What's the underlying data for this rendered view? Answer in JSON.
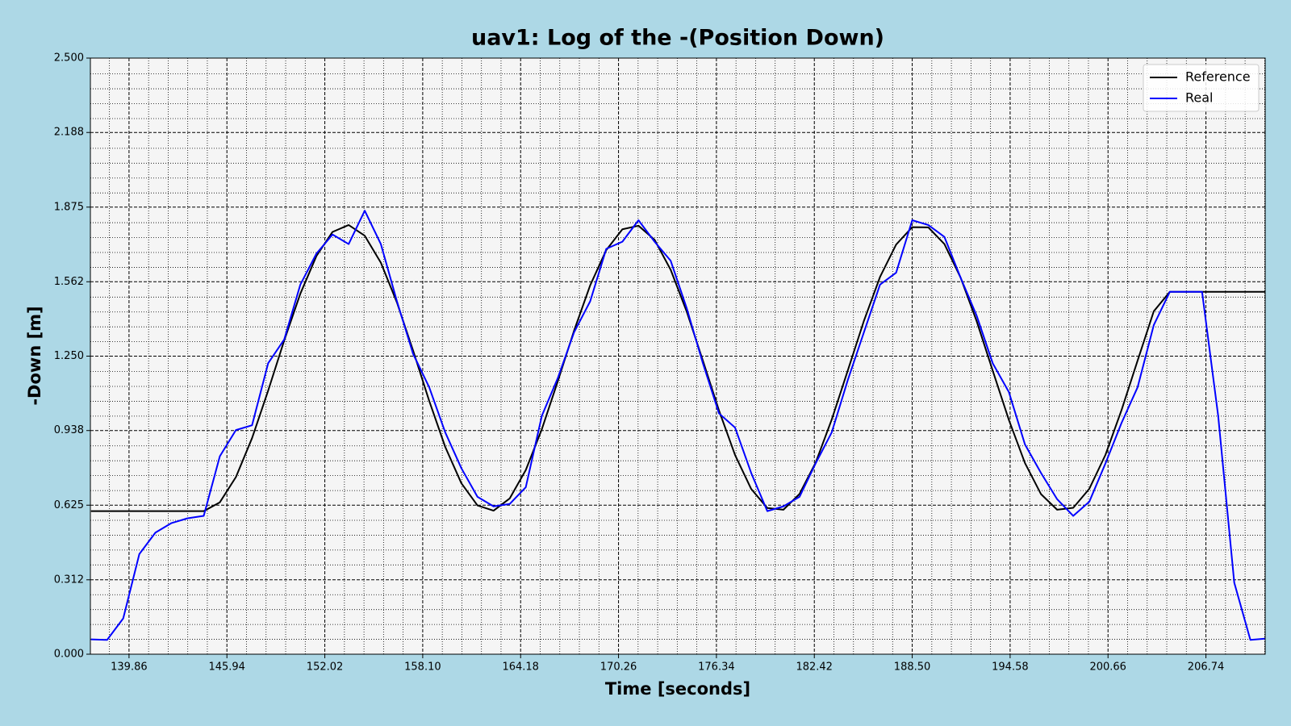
{
  "chart_data": {
    "type": "line",
    "title": "uav1: Log of the -(Position Down)",
    "x_label": "Time [seconds]",
    "y_label": "-Down [m]",
    "x": [
      137.5,
      138.5,
      139.5,
      140.5,
      141.5,
      142.5,
      143.5,
      144.5,
      145.5,
      146.5,
      147.5,
      148.5,
      149.5,
      150.5,
      151.5,
      152.5,
      153.5,
      154.5,
      155.5,
      156.5,
      157.5,
      158.5,
      159.5,
      160.5,
      161.5,
      162.5,
      163.5,
      164.5,
      165.5,
      166.5,
      167.5,
      168.5,
      169.5,
      170.5,
      171.5,
      172.5,
      173.5,
      174.5,
      175.5,
      176.5,
      177.5,
      178.5,
      179.5,
      180.5,
      181.5,
      182.5,
      183.5,
      184.5,
      185.5,
      186.5,
      187.5,
      188.5,
      189.5,
      190.5,
      191.5,
      192.5,
      193.5,
      194.5,
      195.5,
      196.5,
      197.5,
      198.5,
      199.5,
      200.5,
      201.5,
      202.5,
      203.5,
      204.5,
      205.5,
      206.5,
      207.5,
      208.5,
      209.5,
      210.4
    ],
    "series": [
      {
        "name": "Reference",
        "color": "#000000",
        "values": [
          0.6,
          0.6,
          0.6,
          0.6,
          0.6,
          0.6,
          0.6,
          0.6,
          0.637,
          0.743,
          0.906,
          1.105,
          1.316,
          1.512,
          1.67,
          1.771,
          1.8,
          1.755,
          1.642,
          1.475,
          1.274,
          1.063,
          0.869,
          0.717,
          0.624,
          0.602,
          0.653,
          0.772,
          0.944,
          1.147,
          1.357,
          1.547,
          1.695,
          1.782,
          1.797,
          1.738,
          1.612,
          1.436,
          1.231,
          1.022,
          0.835,
          0.693,
          0.613,
          0.606,
          0.672,
          0.803,
          0.984,
          1.19,
          1.398,
          1.582,
          1.718,
          1.791,
          1.79,
          1.72,
          1.58,
          1.397,
          1.189,
          0.983,
          0.802,
          0.671,
          0.606,
          0.614,
          0.694,
          0.836,
          1.024,
          1.232,
          1.438,
          1.52,
          1.52,
          1.52,
          1.52,
          1.52,
          1.52,
          1.52
        ]
      },
      {
        "name": "Real",
        "color": "#0000ff",
        "values": [
          0.062,
          0.06,
          0.15,
          0.42,
          0.51,
          0.55,
          0.57,
          0.58,
          0.83,
          0.94,
          0.96,
          1.22,
          1.32,
          1.55,
          1.68,
          1.76,
          1.72,
          1.86,
          1.72,
          1.48,
          1.26,
          1.12,
          0.93,
          0.78,
          0.66,
          0.62,
          0.63,
          0.7,
          1.0,
          1.16,
          1.35,
          1.48,
          1.7,
          1.73,
          1.82,
          1.73,
          1.65,
          1.45,
          1.22,
          1.01,
          0.95,
          0.76,
          0.6,
          0.62,
          0.66,
          0.8,
          0.93,
          1.15,
          1.35,
          1.55,
          1.6,
          1.82,
          1.8,
          1.75,
          1.58,
          1.42,
          1.22,
          1.1,
          0.88,
          0.76,
          0.65,
          0.58,
          0.64,
          0.8,
          0.97,
          1.12,
          1.38,
          1.52,
          1.52,
          1.52,
          1.0,
          0.3,
          0.06,
          0.065
        ]
      }
    ],
    "xlim": [
      137.46,
      210.42
    ],
    "ylim": [
      0,
      2.5
    ],
    "xticks": [
      139.86,
      145.94,
      152.02,
      {
        "value": 158.1,
        "label": "158.10"
      },
      164.18,
      170.26,
      176.34,
      182.42,
      {
        "value": 188.5,
        "label": "188.50"
      },
      194.58,
      200.66,
      206.74
    ],
    "yticks": [
      {
        "value": 0,
        "label": "0.000"
      },
      {
        "value": 0.312,
        "label": "0.312"
      },
      {
        "value": 0.625,
        "label": "0.625"
      },
      {
        "value": 0.938,
        "label": "0.938"
      },
      {
        "value": 1.25,
        "label": "1.250"
      },
      {
        "value": 1.562,
        "label": "1.562"
      },
      {
        "value": 1.875,
        "label": "1.875"
      },
      {
        "value": 2.188,
        "label": "2.188"
      },
      {
        "value": 2.5,
        "label": "2.500"
      }
    ],
    "grid": true,
    "minor_grid": true,
    "legend": "upper right"
  }
}
